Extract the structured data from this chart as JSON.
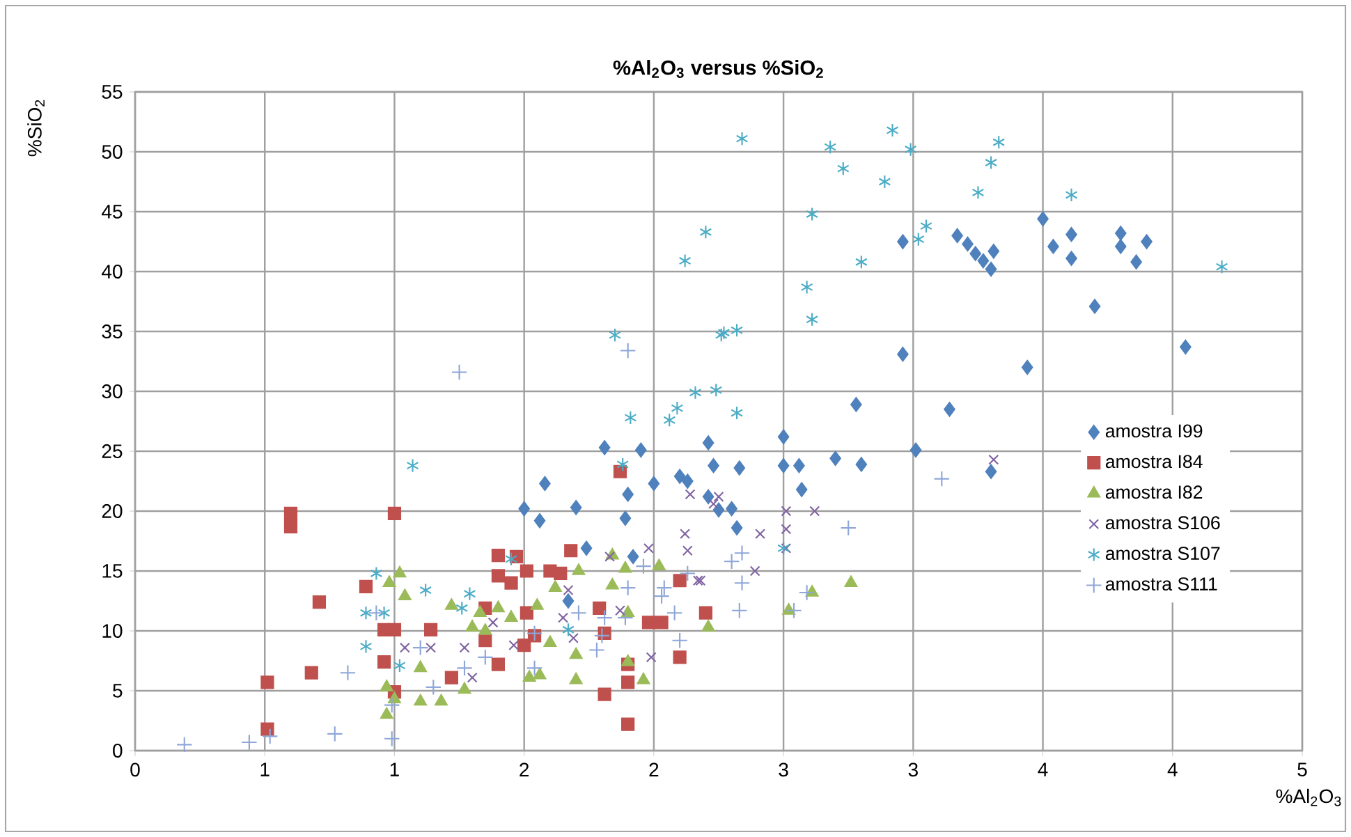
{
  "chart_data": {
    "type": "scatter",
    "title": "**%Al$_{2}$O$_{3}$ versus %SiO$_{2}$**",
    "xlabel": "%Al$_{2}$O$_{3}$",
    "ylabel": "%SiO$_{2}$",
    "xlim": [
      0,
      4.5
    ],
    "ylim": [
      0,
      55
    ],
    "xticks": [
      {
        "value": 0,
        "label": "0"
      },
      {
        "value": 0.5,
        "label": "1"
      },
      {
        "value": 1,
        "label": "1"
      },
      {
        "value": 1.5,
        "label": "2"
      },
      {
        "value": 2,
        "label": "2"
      },
      {
        "value": 2.5,
        "label": "3"
      },
      {
        "value": 3,
        "label": "3"
      },
      {
        "value": 3.5,
        "label": "4"
      },
      {
        "value": 4,
        "label": "4"
      },
      {
        "value": 4.5,
        "label": "5"
      }
    ],
    "yticks": [
      0,
      5,
      10,
      15,
      20,
      25,
      30,
      35,
      40,
      45,
      50,
      55
    ],
    "grid": true,
    "legend": "right",
    "series": [
      {
        "name": "amostra I99",
        "color": "#4f81bd",
        "marker": "diamond",
        "x": [
          3.5,
          2.96,
          3.17,
          3.21,
          3.24,
          3.27,
          3.31,
          3.3,
          3.54,
          3.61,
          3.61,
          3.8,
          3.8,
          3.9,
          3.86,
          3.7,
          4.05,
          3.44,
          2.96,
          2.78,
          3.14,
          2.5,
          3.01,
          2.33,
          2.5,
          2.56,
          2.7,
          2.8,
          2.57,
          3.3,
          2.25,
          2.3,
          2.32,
          1.81,
          1.95,
          2.21,
          2.23,
          2.1,
          2.13,
          2.0,
          1.58,
          1.9,
          2.21,
          1.5,
          1.56,
          1.7,
          1.89,
          1.74,
          1.92,
          1.67
        ],
        "values": [
          44.4,
          42.5,
          43.0,
          42.3,
          41.5,
          40.9,
          41.7,
          40.2,
          42.1,
          43.1,
          41.1,
          43.2,
          42.1,
          42.5,
          40.8,
          37.1,
          33.7,
          32.0,
          33.1,
          28.9,
          28.5,
          26.2,
          25.1,
          23.6,
          23.8,
          23.8,
          24.4,
          23.9,
          21.8,
          23.3,
          20.1,
          20.2,
          18.6,
          25.3,
          25.1,
          25.7,
          23.8,
          22.9,
          22.5,
          22.3,
          22.3,
          21.4,
          21.2,
          20.2,
          19.2,
          20.3,
          19.4,
          16.9,
          16.2,
          12.5
        ]
      },
      {
        "name": "amostra I84",
        "color": "#c0504d",
        "marker": "square",
        "x": [
          0.6,
          0.6,
          1.0,
          0.71,
          0.89,
          0.51,
          0.51,
          0.68,
          0.96,
          1.0,
          0.96,
          1.0,
          1.14,
          1.22,
          1.4,
          1.47,
          1.4,
          1.45,
          1.51,
          1.6,
          1.64,
          1.68,
          1.35,
          1.35,
          1.4,
          1.51,
          1.5,
          1.54,
          1.79,
          1.81,
          1.9,
          1.9,
          1.81,
          1.9,
          1.87,
          1.98,
          2.03,
          2.1,
          2.1,
          2.2
        ],
        "values": [
          19.8,
          18.7,
          19.8,
          12.4,
          13.7,
          5.7,
          1.8,
          6.5,
          10.1,
          10.1,
          7.4,
          4.9,
          10.1,
          6.1,
          16.3,
          16.2,
          14.6,
          14.0,
          15.0,
          15.0,
          14.8,
          16.7,
          11.9,
          9.2,
          7.2,
          11.5,
          8.8,
          9.6,
          11.9,
          9.8,
          7.2,
          5.7,
          4.7,
          2.2,
          23.3,
          10.7,
          10.7,
          7.8,
          14.2,
          11.5
        ]
      },
      {
        "name": "amostra I82",
        "color": "#9bbb59",
        "marker": "triangle",
        "x": [
          1.02,
          0.98,
          1.04,
          0.97,
          0.97,
          1.0,
          1.1,
          1.1,
          1.18,
          1.27,
          1.22,
          1.33,
          1.3,
          1.35,
          1.4,
          1.45,
          1.52,
          1.56,
          1.55,
          1.6,
          1.62,
          1.71,
          1.7,
          1.7,
          1.84,
          1.89,
          1.84,
          1.9,
          1.9,
          1.96,
          2.02,
          2.21,
          2.52,
          2.61,
          2.76
        ],
        "values": [
          14.8,
          14.0,
          12.9,
          5.3,
          3.0,
          4.3,
          6.9,
          4.1,
          4.1,
          5.1,
          12.1,
          11.5,
          10.3,
          10.0,
          11.9,
          11.1,
          6.1,
          6.3,
          12.1,
          9.0,
          13.6,
          15.0,
          8.0,
          5.9,
          16.3,
          15.2,
          13.8,
          11.5,
          7.4,
          5.9,
          15.4,
          10.3,
          11.7,
          13.2,
          14.0
        ]
      },
      {
        "name": "amostra S106",
        "color": "#8064a2",
        "marker": "cross",
        "x": [
          1.04,
          1.14,
          1.3,
          1.27,
          1.38,
          1.46,
          1.67,
          1.65,
          1.69,
          1.83,
          1.98,
          1.99,
          1.87,
          2.12,
          2.13,
          2.17,
          2.14,
          2.23,
          2.25,
          2.51,
          2.62,
          2.51,
          2.41,
          2.51,
          2.39,
          2.18,
          3.31
        ],
        "values": [
          8.6,
          8.6,
          6.1,
          8.6,
          10.7,
          8.8,
          13.4,
          11.1,
          9.4,
          16.2,
          16.9,
          7.8,
          11.7,
          18.1,
          16.7,
          14.2,
          21.4,
          20.6,
          21.2,
          20.0,
          20.0,
          18.5,
          18.1,
          16.9,
          15.0,
          14.2,
          24.3
        ]
      },
      {
        "name": "amostra S107",
        "color": "#4bacc6",
        "marker": "cross",
        "x": [
          2.2,
          2.12,
          1.85,
          2.26,
          2.16,
          2.24,
          2.09,
          2.06,
          1.91,
          1.07,
          1.88,
          0.93,
          0.89,
          0.96,
          0.89,
          1.12,
          1.26,
          1.29,
          1.45,
          1.02,
          1.67,
          2.34,
          2.68,
          2.73,
          2.92,
          2.99,
          2.89,
          3.33,
          3.3,
          3.25,
          3.61,
          2.61,
          3.05,
          3.02,
          2.8,
          2.59,
          2.61,
          2.27,
          2.32,
          2.32,
          4.19,
          2.5
        ],
        "values": [
          43.3,
          40.9,
          34.7,
          34.7,
          29.9,
          30.1,
          28.6,
          27.6,
          27.8,
          23.8,
          23.9,
          14.8,
          11.5,
          11.5,
          8.7,
          13.4,
          11.9,
          13.1,
          16.0,
          7.1,
          10.1,
          51.1,
          50.4,
          48.6,
          51.8,
          50.2,
          47.5,
          50.8,
          49.1,
          46.6,
          46.4,
          44.8,
          43.8,
          42.7,
          40.8,
          38.7,
          36.0,
          34.9,
          35.1,
          28.2,
          40.4,
          16.9
        ]
      },
      {
        "name": "amostra S111",
        "color": "#8ea6d8",
        "marker": "plus",
        "x": [
          0.19,
          0.44,
          0.52,
          0.77,
          0.82,
          0.99,
          0.99,
          1.15,
          1.25,
          1.9,
          0.93,
          1.1,
          1.27,
          1.35,
          1.54,
          1.54,
          1.71,
          1.81,
          1.8,
          1.78,
          1.89,
          1.96,
          1.9,
          2.04,
          2.03,
          2.08,
          2.1,
          2.13,
          3.11,
          2.75,
          2.34,
          2.3,
          2.34,
          2.33,
          2.59,
          2.54
        ],
        "values": [
          0.5,
          0.7,
          1.2,
          1.4,
          6.5,
          1.0,
          3.8,
          5.3,
          31.6,
          33.4,
          11.5,
          8.6,
          6.9,
          7.8,
          9.8,
          6.9,
          11.5,
          11.1,
          9.6,
          8.4,
          11.1,
          15.4,
          13.6,
          13.6,
          12.9,
          11.5,
          9.2,
          14.8,
          22.7,
          18.6,
          16.5,
          15.8,
          14.0,
          11.7,
          13.2,
          11.7
        ]
      }
    ]
  }
}
